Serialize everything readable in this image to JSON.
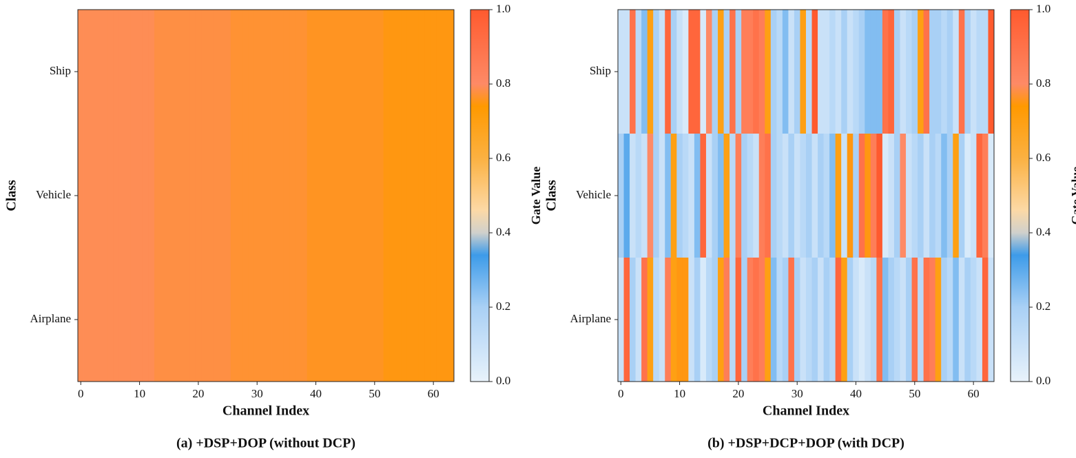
{
  "chart_data": [
    {
      "type": "heatmap",
      "title": "(a) +DSP+DOP (without DCP)",
      "x_label": "Channel Index",
      "y_label": "Class",
      "colorbar_label": "Gate Value",
      "y_categories": [
        "Ship",
        "Vehicle",
        "Airplane"
      ],
      "values": [
        [
          0.79,
          0.79,
          0.79,
          0.79,
          0.79,
          0.79,
          0.79,
          0.79,
          0.79,
          0.79,
          0.79,
          0.79,
          0.79,
          0.78,
          0.78,
          0.78,
          0.78,
          0.78,
          0.78,
          0.78,
          0.78,
          0.78,
          0.78,
          0.78,
          0.78,
          0.78,
          0.77,
          0.77,
          0.77,
          0.77,
          0.77,
          0.77,
          0.77,
          0.77,
          0.77,
          0.77,
          0.77,
          0.77,
          0.77,
          0.76,
          0.76,
          0.76,
          0.76,
          0.76,
          0.76,
          0.76,
          0.76,
          0.76,
          0.76,
          0.76,
          0.76,
          0.76,
          0.75,
          0.75,
          0.75,
          0.75,
          0.75,
          0.75,
          0.75,
          0.75,
          0.75,
          0.75,
          0.75,
          0.75
        ],
        [
          0.79,
          0.79,
          0.79,
          0.79,
          0.79,
          0.79,
          0.79,
          0.79,
          0.79,
          0.79,
          0.79,
          0.79,
          0.79,
          0.78,
          0.78,
          0.78,
          0.78,
          0.78,
          0.78,
          0.78,
          0.78,
          0.78,
          0.78,
          0.78,
          0.78,
          0.78,
          0.77,
          0.77,
          0.77,
          0.77,
          0.77,
          0.77,
          0.77,
          0.77,
          0.77,
          0.77,
          0.77,
          0.77,
          0.77,
          0.76,
          0.76,
          0.76,
          0.76,
          0.76,
          0.76,
          0.76,
          0.76,
          0.76,
          0.76,
          0.76,
          0.76,
          0.76,
          0.75,
          0.75,
          0.75,
          0.75,
          0.75,
          0.75,
          0.75,
          0.75,
          0.75,
          0.75,
          0.75,
          0.75
        ],
        [
          0.79,
          0.79,
          0.79,
          0.79,
          0.79,
          0.79,
          0.79,
          0.79,
          0.79,
          0.79,
          0.79,
          0.79,
          0.79,
          0.78,
          0.78,
          0.78,
          0.78,
          0.78,
          0.78,
          0.78,
          0.78,
          0.78,
          0.78,
          0.78,
          0.78,
          0.78,
          0.77,
          0.77,
          0.77,
          0.77,
          0.77,
          0.77,
          0.77,
          0.77,
          0.77,
          0.77,
          0.77,
          0.77,
          0.77,
          0.76,
          0.76,
          0.76,
          0.76,
          0.76,
          0.76,
          0.76,
          0.76,
          0.76,
          0.76,
          0.76,
          0.76,
          0.76,
          0.75,
          0.75,
          0.75,
          0.75,
          0.75,
          0.75,
          0.75,
          0.75,
          0.75,
          0.75,
          0.75,
          0.75
        ]
      ],
      "xlim": [
        -0.5,
        63.5
      ],
      "xticks": [
        0,
        10,
        20,
        30,
        40,
        50,
        60
      ],
      "clim": [
        0,
        1
      ],
      "cticks": [
        {
          "value": 0,
          "label": "0.0"
        },
        0.2,
        0.4,
        0.6,
        0.8,
        {
          "value": 1,
          "label": "1.0"
        }
      ],
      "colormap": [
        [
          0,
          "#e8f2fb"
        ],
        [
          0.2,
          "#a9d0f5"
        ],
        [
          0.34,
          "#3d9be9"
        ],
        [
          0.4,
          "#d0d0cc"
        ],
        [
          0.46,
          "#fcd9a6"
        ],
        [
          0.6,
          "#fbb142"
        ],
        [
          0.74,
          "#ff9900"
        ],
        [
          0.8,
          "#fe8a66"
        ],
        [
          1,
          "#ff5a2e"
        ]
      ]
    },
    {
      "type": "heatmap",
      "title": "(b) +DSP+DCP+DOP (with DCP)",
      "x_label": "Channel Index",
      "y_label": "Class",
      "colorbar_label": "Gate Value",
      "y_categories": [
        "Ship",
        "Vehicle",
        "Airplane"
      ],
      "values": [
        [
          0.1,
          0.1,
          0.9,
          0.15,
          0.25,
          0.7,
          0.2,
          0.1,
          0.95,
          0.2,
          0.1,
          0.05,
          0.95,
          0.95,
          0.05,
          0.8,
          0.2,
          0.7,
          0.2,
          0.9,
          0.2,
          0.85,
          0.85,
          0.9,
          0.85,
          0.7,
          0.2,
          0.15,
          0.25,
          0.1,
          0.2,
          0.7,
          0.15,
          1.0,
          0.1,
          0.1,
          0.15,
          0.1,
          0.2,
          0.1,
          0.15,
          0.2,
          0.25,
          0.25,
          0.25,
          0.9,
          0.95,
          0.2,
          0.1,
          0.15,
          0.2,
          0.7,
          0.9,
          0.2,
          0.2,
          0.15,
          0.2,
          0.1,
          0.9,
          0.2,
          0.1,
          0.15,
          0.15,
          1.0
        ],
        [
          0.2,
          0.3,
          0.1,
          0.15,
          0.1,
          0.8,
          0.2,
          0.1,
          0.25,
          0.7,
          0.2,
          0.15,
          0.1,
          0.25,
          0.95,
          0.1,
          0.2,
          0.25,
          0.7,
          0.15,
          0.85,
          0.2,
          0.15,
          0.1,
          0.85,
          0.9,
          0.2,
          0.15,
          0.1,
          0.2,
          0.1,
          0.15,
          0.2,
          0.1,
          0.2,
          0.15,
          0.25,
          0.7,
          0.1,
          0.75,
          0.2,
          0.9,
          0.75,
          0.85,
          1.0,
          0.05,
          0.1,
          0.2,
          0.8,
          0.1,
          0.15,
          0.2,
          0.1,
          0.2,
          0.15,
          0.25,
          0.2,
          0.7,
          0.2,
          0.05,
          0.1,
          0.95,
          0.85,
          0.05
        ],
        [
          0.1,
          0.95,
          0.2,
          0.1,
          0.9,
          0.7,
          0.15,
          0.1,
          0.85,
          0.7,
          0.75,
          0.75,
          0.1,
          0.2,
          0.05,
          0.15,
          0.2,
          0.7,
          0.85,
          0.15,
          0.95,
          0.2,
          0.85,
          0.9,
          0.85,
          0.7,
          0.25,
          0.15,
          0.2,
          0.9,
          0.2,
          0.1,
          0.15,
          0.2,
          0.1,
          0.2,
          0.15,
          0.95,
          0.7,
          0.2,
          0.1,
          0.05,
          0.1,
          0.15,
          0.9,
          0.25,
          0.2,
          0.15,
          0.1,
          0.2,
          0.9,
          0.15,
          0.9,
          0.85,
          0.7,
          0.2,
          0.15,
          0.25,
          0.1,
          0.2,
          0.15,
          0.1,
          0.95,
          0.1
        ]
      ],
      "xlim": [
        -0.5,
        63.5
      ],
      "xticks": [
        0,
        10,
        20,
        30,
        40,
        50,
        60
      ],
      "clim": [
        0,
        1
      ],
      "cticks": [
        {
          "value": 0,
          "label": "0.0"
        },
        0.2,
        0.4,
        0.6,
        0.8,
        {
          "value": 1,
          "label": "1.0"
        }
      ],
      "colormap": [
        [
          0,
          "#e8f2fb"
        ],
        [
          0.2,
          "#a9d0f5"
        ],
        [
          0.34,
          "#3d9be9"
        ],
        [
          0.4,
          "#d0d0cc"
        ],
        [
          0.46,
          "#fcd9a6"
        ],
        [
          0.6,
          "#fbb142"
        ],
        [
          0.74,
          "#ff9900"
        ],
        [
          0.8,
          "#fe8a66"
        ],
        [
          1,
          "#ff5a2e"
        ]
      ]
    }
  ]
}
